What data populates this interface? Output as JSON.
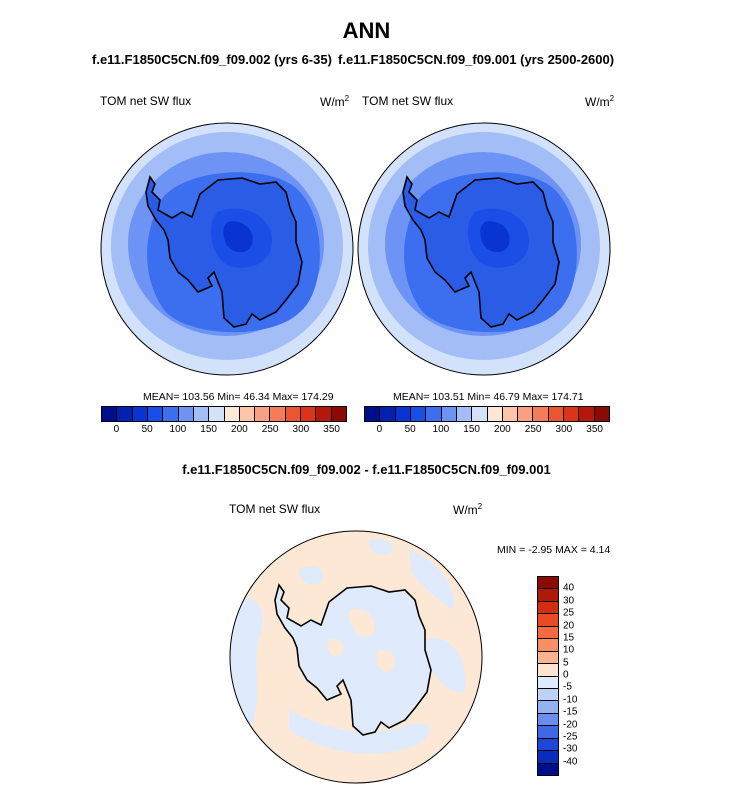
{
  "header": {
    "title": "ANN",
    "case_left": "f.e11.F1850C5CN.f09_f09.002 (yrs 6-35)",
    "case_right": "f.e11.F1850C5CN.f09_f09.001 (yrs 2500-2600)"
  },
  "panel_left": {
    "variable": "TOM net SW flux",
    "unit": "W/m",
    "unit_sup": "2",
    "stats": "MEAN= 103.56  Min=  46.34  Max= 174.29"
  },
  "panel_right": {
    "variable": "TOM net SW flux",
    "unit": "W/m",
    "unit_sup": "2",
    "stats": "MEAN= 103.51  Min=  46.79  Max= 174.71"
  },
  "colorbar_abs": {
    "colors": [
      "#000e8c",
      "#0022b4",
      "#0835d2",
      "#1a4ee6",
      "#3c6ef0",
      "#6d94f5",
      "#a3bdf7",
      "#d3e2fb",
      "#ffe7d6",
      "#fcc4a8",
      "#f9a082",
      "#f57c58",
      "#ec5530",
      "#dc3418",
      "#b5180a",
      "#8a0a04"
    ],
    "ticks": [
      "0",
      "50",
      "100",
      "150",
      "200",
      "250",
      "300",
      "350"
    ]
  },
  "diff": {
    "title": "f.e11.F1850C5CN.f09_f09.002 - f.e11.F1850C5CN.f09_f09.001",
    "variable": "TOM net SW flux",
    "unit": "W/m",
    "unit_sup": "2",
    "stats": "MIN =  -2.95 MAX =   4.14"
  },
  "colorbar_diff": {
    "colors": [
      "#8a0a04",
      "#b01808",
      "#d22e12",
      "#ea4a24",
      "#f56a40",
      "#fa8e64",
      "#fbb490",
      "#fde4d0",
      "#dfeafc",
      "#bcd2f8",
      "#92b2f2",
      "#6a8ef0",
      "#3f68e6",
      "#1e46d8",
      "#0a2cbc",
      "#000e8c"
    ],
    "ticks": [
      "40",
      "30",
      "25",
      "20",
      "15",
      "10",
      "5",
      "0",
      "-5",
      "-10",
      "-15",
      "-20",
      "-25",
      "-30",
      "-40"
    ]
  },
  "maps": {
    "left": {
      "land_fill": "#2a5ce6",
      "coast": "#000000"
    },
    "right": {
      "land_fill": "#2a5ce6",
      "coast": "#000000"
    },
    "diff": {
      "ocean_fill": "#fde8d6",
      "patch_fill": "#dfeafc"
    }
  }
}
